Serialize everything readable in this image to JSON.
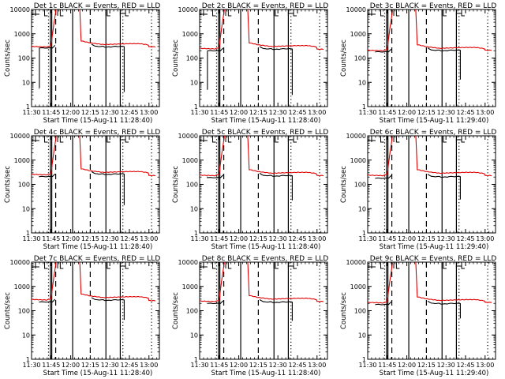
{
  "chart_data": {
    "type": "line",
    "layout": "3x3 grid of small-multiples",
    "yscale": "log",
    "ylim": [
      1,
      10000
    ],
    "ytick_labels": [
      "1",
      "10",
      "100",
      "1000",
      "10000"
    ],
    "xlim_minutes_after_1130": [
      0,
      98
    ],
    "xtick_labels": [
      "11:30",
      "11:45",
      "12:00",
      "12:15",
      "12:30",
      "12:45",
      "13:00"
    ],
    "ylabel": "Counts/sec",
    "legend_text": "BLACK = Events, RED = LLD",
    "series_names": [
      "Events",
      "LLD"
    ],
    "series_colors": {
      "Events": "#000000",
      "LLD": "#e00000"
    },
    "panels": [
      {
        "title": "Det 1c BLACK = Events, RED = LLD",
        "xlabel": "Start Time (15-Aug-11 11:28:40)",
        "red_base": 300,
        "black_pre": 260,
        "black_post": 300,
        "black_drop_end": 4,
        "black_pre_dip": 6,
        "red_tail": 290
      },
      {
        "title": "Det 2c BLACK = Events, RED = LLD",
        "xlabel": "Start Time (15-Aug-11 11:28:40)",
        "red_base": 250,
        "black_pre": 200,
        "black_post": 240,
        "black_drop_end": 3,
        "black_pre_dip": 5,
        "red_tail": 230
      },
      {
        "title": "Det 3c BLACK = Events, RED = LLD",
        "xlabel": "Start Time (15-Aug-11 11:29:40)",
        "red_base": 210,
        "black_pre": 180,
        "black_post": 210,
        "black_drop_end": 13,
        "black_pre_dip": null,
        "red_tail": 210
      },
      {
        "title": "Det 4c BLACK = Events, RED = LLD",
        "xlabel": "Start Time (15-Aug-11 11:28:40)",
        "red_base": 260,
        "black_pre": 210,
        "black_post": 270,
        "black_drop_end": 14,
        "black_pre_dip": null,
        "red_tail": 230
      },
      {
        "title": "Det 5c BLACK = Events, RED = LLD",
        "xlabel": "Start Time (15-Aug-11 11:28:40)",
        "red_base": 240,
        "black_pre": 190,
        "black_post": 230,
        "black_drop_end": 22,
        "black_pre_dip": null,
        "red_tail": 230
      },
      {
        "title": "Det 6c BLACK = Events, RED = LLD",
        "xlabel": "Start Time (15-Aug-11 11:29:40)",
        "red_base": 240,
        "black_pre": 180,
        "black_post": 210,
        "black_drop_end": 24,
        "black_pre_dip": null,
        "red_tail": 230
      },
      {
        "title": "Det 7c BLACK = Events, RED = LLD",
        "xlabel": "Start Time (15-Aug-11 11:28:40)",
        "red_base": 290,
        "black_pre": 230,
        "black_post": 280,
        "black_drop_end": 42,
        "black_pre_dip": null,
        "red_tail": 260
      },
      {
        "title": "Det 8c BLACK = Events, RED = LLD",
        "xlabel": "Start Time (15-Aug-11 11:28:40)",
        "red_base": 250,
        "black_pre": 200,
        "black_post": 230,
        "black_drop_end": 38,
        "black_pre_dip": null,
        "red_tail": 240
      },
      {
        "title": "Det 9c BLACK = Events, RED = LLD",
        "xlabel": "Start Time (15-Aug-11 11:29:40)",
        "red_base": 220,
        "black_pre": 180,
        "black_post": 200,
        "black_drop_end": 48,
        "black_pre_dip": null,
        "red_tail": 220
      }
    ],
    "red_profile_minutes": [
      0,
      12,
      15,
      17,
      19,
      21,
      25,
      28,
      31,
      33,
      35,
      36,
      38,
      45,
      55,
      65,
      75,
      83,
      90,
      95
    ],
    "red_profile_factor": [
      1.0,
      0.95,
      1.1,
      8,
      40,
      10000,
      10000,
      6000,
      3500,
      2500,
      1800,
      500,
      1.7,
      1.4,
      1.2,
      1.25,
      1.3,
      1.3,
      1.15,
      1.0
    ],
    "vertical_markers_minutes": {
      "solid": [
        14.5,
        15.5,
        31.5,
        57,
        68
      ],
      "dashed": [
        18.5,
        45
      ],
      "dotted": [
        13,
        70,
        92
      ]
    }
  }
}
